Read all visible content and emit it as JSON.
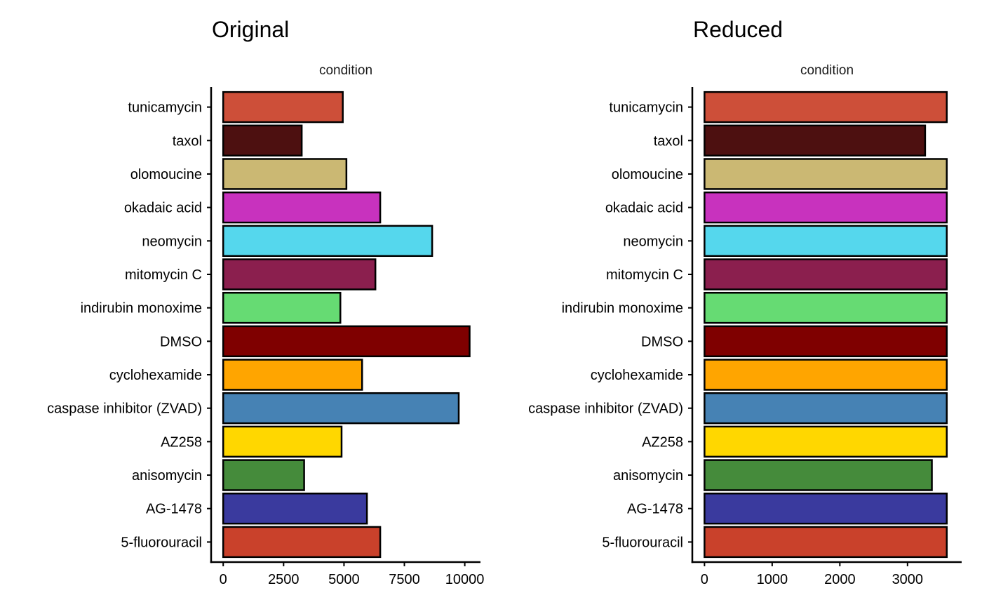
{
  "chart_data": [
    {
      "type": "bar",
      "orientation": "horizontal",
      "title": "Original",
      "facet_label": "condition",
      "xlabel": "",
      "ylabel": "",
      "xlim": [
        -500,
        10650
      ],
      "xticks": [
        0,
        2500,
        5000,
        7500,
        10000
      ],
      "categories": [
        "tunicamycin",
        "taxol",
        "olomoucine",
        "okadaic acid",
        "neomycin",
        "mitomycin C",
        "indirubin monoxime",
        "DMSO",
        "cyclohexamide",
        "caspase inhibitor (ZVAD)",
        "AZ258",
        "anisomycin",
        "AG-1478",
        "5-fluorouracil"
      ],
      "values": [
        4950,
        3250,
        5100,
        6500,
        8650,
        6300,
        4850,
        10200,
        5750,
        9750,
        4900,
        3350,
        5950,
        6500
      ],
      "colors": [
        "#CD4F39",
        "#4D1010",
        "#CBB873",
        "#C832BE",
        "#55D7ED",
        "#8B1F4E",
        "#66DB73",
        "#7F0000",
        "#FFA500",
        "#4682B4",
        "#FFD700",
        "#458B3B",
        "#3A3A9E",
        "#C9412B"
      ],
      "grid": false,
      "legend": "none"
    },
    {
      "type": "bar",
      "orientation": "horizontal",
      "title": "Reduced",
      "facet_label": "condition",
      "xlabel": "",
      "ylabel": "",
      "xlim": [
        -180,
        3800
      ],
      "xticks": [
        0,
        1000,
        2000,
        3000
      ],
      "categories": [
        "tunicamycin",
        "taxol",
        "olomoucine",
        "okadaic acid",
        "neomycin",
        "mitomycin C",
        "indirubin monoxime",
        "DMSO",
        "cyclohexamide",
        "caspase inhibitor (ZVAD)",
        "AZ258",
        "anisomycin",
        "AG-1478",
        "5-fluorouracil"
      ],
      "values": [
        3580,
        3260,
        3580,
        3580,
        3580,
        3580,
        3580,
        3580,
        3580,
        3580,
        3580,
        3360,
        3580,
        3580
      ],
      "colors": [
        "#CD4F39",
        "#4D1010",
        "#CBB873",
        "#C832BE",
        "#55D7ED",
        "#8B1F4E",
        "#66DB73",
        "#7F0000",
        "#FFA500",
        "#4682B4",
        "#FFD700",
        "#458B3B",
        "#3A3A9E",
        "#C9412B"
      ],
      "grid": false,
      "legend": "none"
    }
  ]
}
